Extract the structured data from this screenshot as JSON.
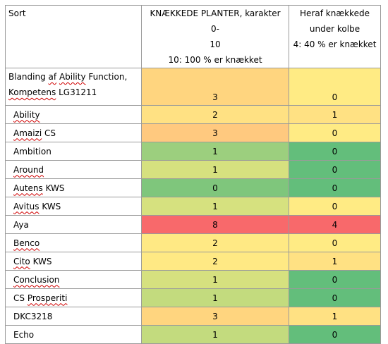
{
  "header": {
    "col1": "Sort",
    "col2_line1": "KNÆKKEDE PLANTER, karakter 0-",
    "col2_line2": "10",
    "col2_line3": "10: 100 % er knækket",
    "col3_line1": "Heraf knækkede",
    "col3_line2": "under kolbe",
    "col3_line3": "4: 40 % er knækket"
  },
  "rows": [
    {
      "name_a": "Blanding af Ability Function,",
      "name_b": "Kompetens LG31211",
      "score": "3",
      "under": "0",
      "score_color": "#ffd57f",
      "under_color": "#ffeb84"
    },
    {
      "name_a": "Ability",
      "score": "2",
      "under": "1",
      "score_color": "#ffe183",
      "under_color": "#ffe183"
    },
    {
      "name_a": "Amaizi CS",
      "score": "3",
      "under": "0",
      "score_color": "#ffc97f",
      "under_color": "#ffeb84"
    },
    {
      "name_a": "Ambition",
      "score": "1",
      "under": "0",
      "score_color": "#9ccf7e",
      "under_color": "#63be7b"
    },
    {
      "name_a": "Around",
      "score": "1",
      "under": "0",
      "score_color": "#d6e17f",
      "under_color": "#63be7b"
    },
    {
      "name_a": "Autens KWS",
      "score": "0",
      "under": "0",
      "score_color": "#7fc67c",
      "under_color": "#63be7b"
    },
    {
      "name_a": "Avitus KWS",
      "score": "1",
      "under": "0",
      "score_color": "#d6e17f",
      "under_color": "#ffeb84"
    },
    {
      "name_a": "Aya",
      "score": "8",
      "under": "4",
      "score_color": "#f8696b",
      "under_color": "#f8696b"
    },
    {
      "name_a": "Benco",
      "score": "2",
      "under": "0",
      "score_color": "#ffe984",
      "under_color": "#ffeb84"
    },
    {
      "name_a": "Cito KWS",
      "score": "2",
      "under": "1",
      "score_color": "#ffe984",
      "under_color": "#ffe183"
    },
    {
      "name_a": "Conclusion",
      "score": "1",
      "under": "0",
      "score_color": "#d6e17f",
      "under_color": "#63be7b"
    },
    {
      "name_a": "CS Prosperiti",
      "score": "1",
      "under": "0",
      "score_color": "#c3db7e",
      "under_color": "#63be7b"
    },
    {
      "name_a": "DKC3218",
      "score": "3",
      "under": "1",
      "score_color": "#ffd57f",
      "under_color": "#ffe183"
    },
    {
      "name_a": "Echo",
      "score": "1",
      "under": "0",
      "score_color": "#c3db7e",
      "under_color": "#63be7b"
    }
  ]
}
